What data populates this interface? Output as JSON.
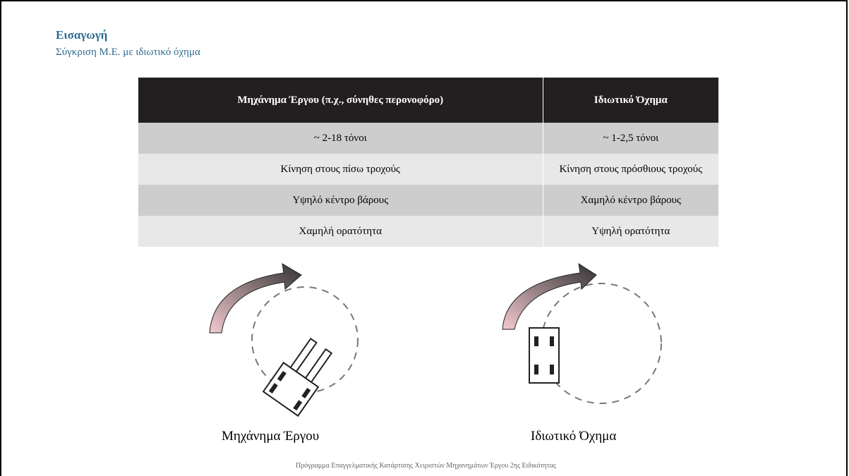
{
  "header": {
    "title": "Εισαγωγή",
    "subtitle": "Σύγκριση Μ.Ε. με ιδιωτικό όχημα"
  },
  "table": {
    "columns": [
      "Μηχάνημα Έργου  (π.χ., σύνηθες περονοφόρο)",
      "Ιδιωτικό Όχημα"
    ],
    "rows": [
      [
        "~ 2-18 τόνοι",
        "~ 1-2,5 τόνοι"
      ],
      [
        "Κίνηση στους πίσω τροχούς",
        "Κίνηση στους πρόσθιους τροχούς"
      ],
      [
        "Υψηλό κέντρο βάρους",
        "Χαμηλό κέντρο βάρους"
      ],
      [
        "Χαμηλή ορατότητα",
        "Υψηλή ορατότητα"
      ]
    ]
  },
  "figures": [
    {
      "caption": "Μηχάνημα Έργου"
    },
    {
      "caption": "Ιδιωτικό Όχημα"
    }
  ],
  "footer": "Πρόγραμμα Επαγγελματικής Κατάρτισης Χειριστών Μηχανημάτων Έργου 2ης Ειδικότητας"
}
